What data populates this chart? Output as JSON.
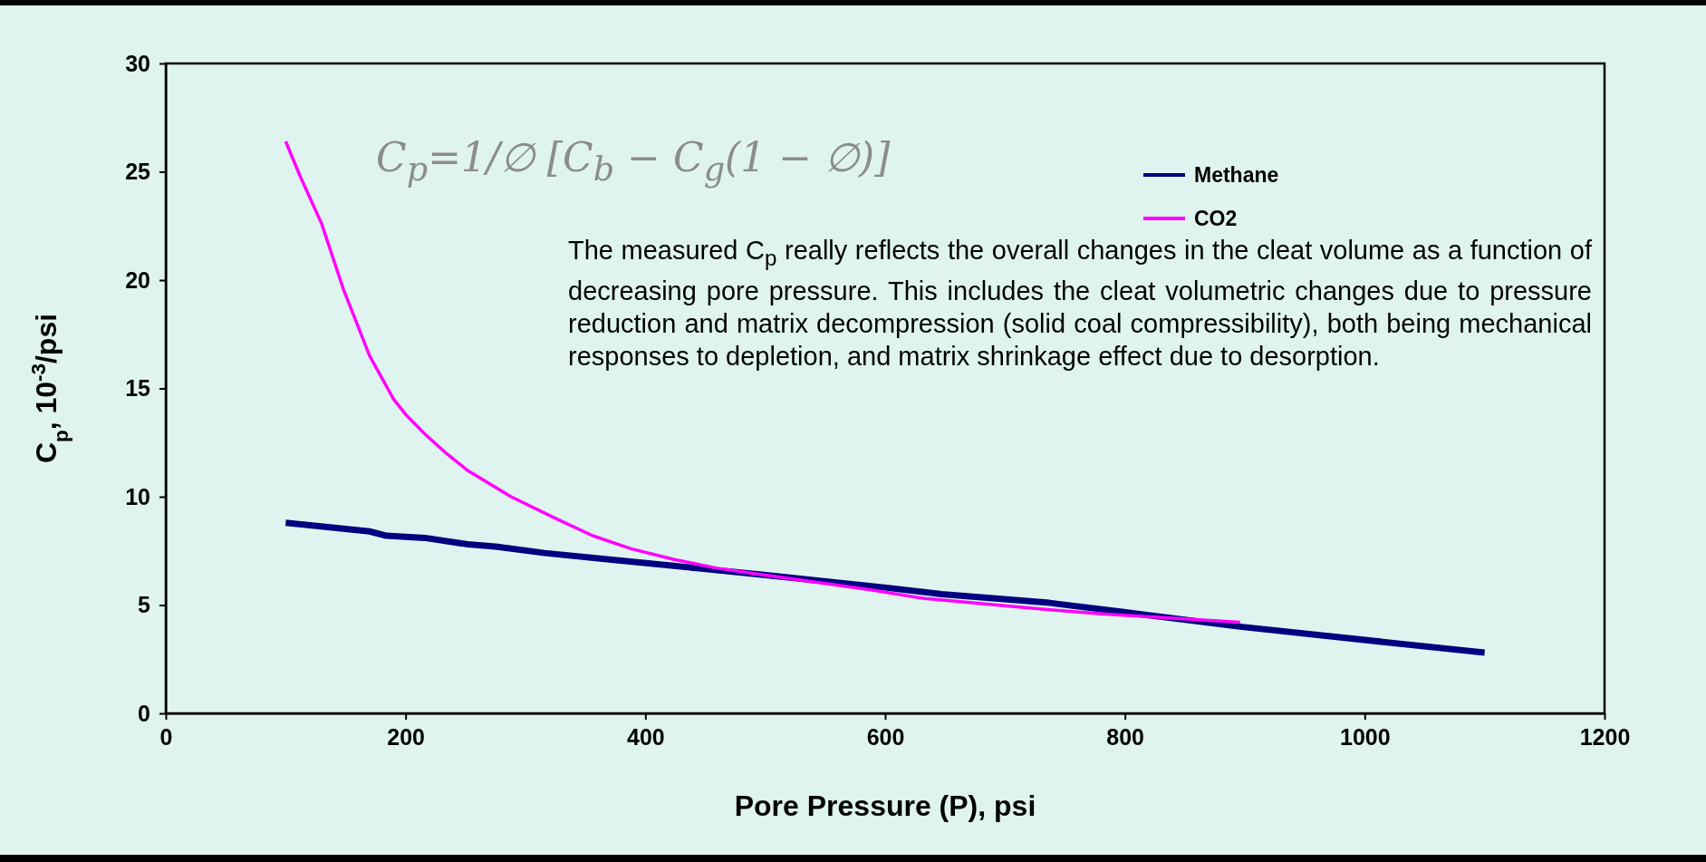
{
  "chart_data": {
    "type": "line",
    "xlabel": "Pore Pressure (P), psi",
    "ylabel": "C$_{p}$, 10$^{-3}$/psi",
    "xlim": [
      0,
      1200
    ],
    "xticks": [
      0,
      200,
      400,
      600,
      800,
      1000,
      1200
    ],
    "ylim": [
      0,
      30
    ],
    "yticks": [
      0,
      5,
      10,
      15,
      20,
      25,
      30
    ],
    "grid": false,
    "legend": "top right",
    "marker": "none",
    "line_style": "solid",
    "series": [
      {
        "name": "Methane",
        "color": "#000080",
        "x": [
          100,
          170,
          184,
          216,
          252,
          275,
          316,
          370,
          443,
          497,
          601,
          647,
          737,
          796,
          896,
          1100
        ],
        "values": [
          8.8,
          8.4,
          8.2,
          8.1,
          7.8,
          7.7,
          7.4,
          7.1,
          6.7,
          6.4,
          5.8,
          5.5,
          5.1,
          4.7,
          4.0,
          2.8
        ]
      },
      {
        "name": "CO2",
        "color": "#ff00ff",
        "x": [
          100,
          112,
          130,
          148,
          170,
          190,
          200,
          216,
          234,
          252,
          288,
          325,
          356,
          388,
          424,
          460,
          497,
          588,
          633,
          733,
          778,
          896
        ],
        "values": [
          26.4,
          24.8,
          22.6,
          19.6,
          16.5,
          14.5,
          13.8,
          12.9,
          12.0,
          11.2,
          10.0,
          9.0,
          8.2,
          7.6,
          7.1,
          6.7,
          6.4,
          5.7,
          5.3,
          4.8,
          4.6,
          4.2
        ]
      }
    ],
    "annotations": [
      "C$_{p}$=1/∅ [C$_{b}$ − C$_{g}$(1 − ∅)]",
      "The measured C$_{p}$ really reflects the overall changes in the cleat volume as a function of decreasing pore pressure. This includes the cleat volumetric changes due to pressure reduction and matrix decompression (solid coal compressibility), both being mechanical responses to depletion, and matrix shrinkage effect due to desorption."
    ]
  }
}
